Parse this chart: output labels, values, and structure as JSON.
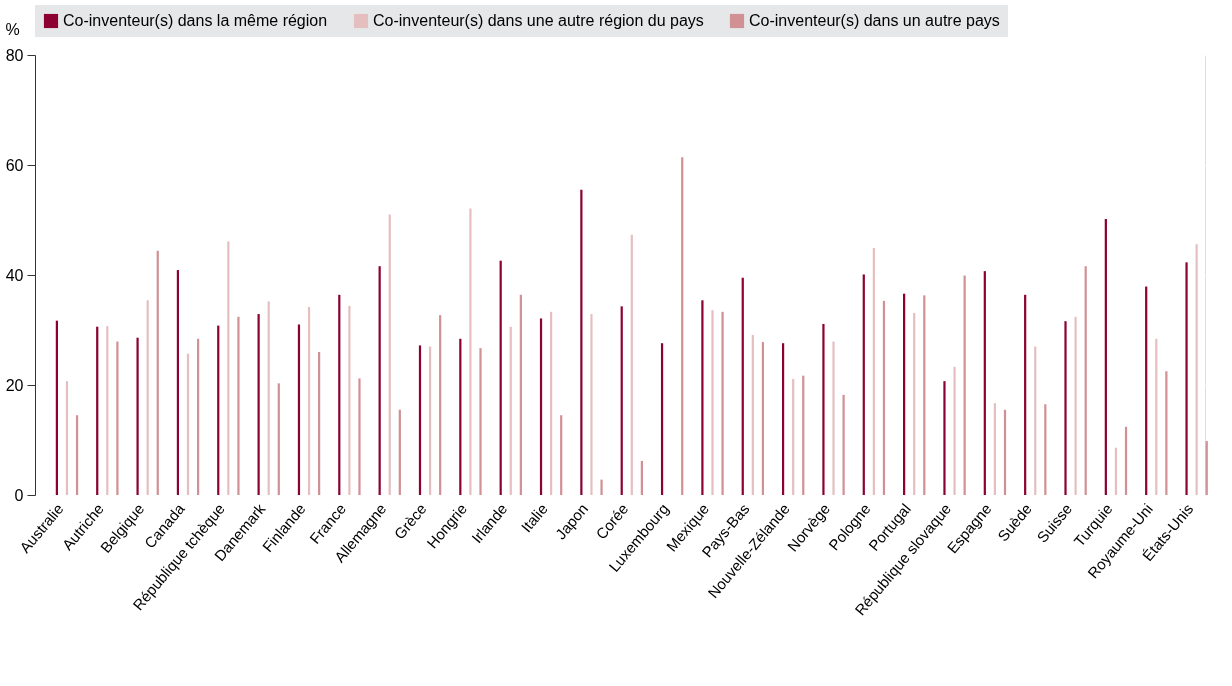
{
  "chart_data": {
    "type": "bar",
    "ylabel": "%",
    "categories": [
      "Australie",
      "Autriche",
      "Belgique",
      "Canada",
      "République tchèque",
      "Danemark",
      "Finlande",
      "France",
      "Allemagne",
      "Grèce",
      "Hongrie",
      "Irlande",
      "Italie",
      "Japon",
      "Corée",
      "Luxembourg",
      "Mexique",
      "Pays-Bas",
      "Nouvelle-Zélande",
      "Norvège",
      "Pologne",
      "Portugal",
      "République slovaque",
      "Espagne",
      "Suède",
      "Suisse",
      "Turquie",
      "Royaume-Uni",
      "États-Unis"
    ],
    "series": [
      {
        "name": "Co-inventeur(s) dans la même région",
        "color": "#8c0032",
        "values": [
          31.7,
          30.6,
          28.6,
          40.9,
          30.8,
          32.9,
          31.0,
          36.4,
          41.6,
          27.2,
          28.4,
          42.6,
          32.1,
          55.5,
          34.3,
          27.6,
          35.4,
          39.5,
          27.6,
          31.1,
          40.1,
          36.6,
          20.7,
          40.7,
          36.4,
          31.6,
          50.2,
          37.9,
          42.3
        ]
      },
      {
        "name": "Co-inventeur(s) dans une autre région du pays",
        "color": "#e5bfc0",
        "values": [
          20.7,
          30.7,
          35.4,
          25.7,
          46.1,
          35.2,
          34.2,
          34.4,
          51.0,
          27.0,
          52.1,
          30.6,
          33.3,
          32.9,
          47.3,
          null,
          33.6,
          29.1,
          21.1,
          27.9,
          44.9,
          33.1,
          23.3,
          16.7,
          27.0,
          32.4,
          8.6,
          28.4,
          45.6
        ]
      },
      {
        "name": "Co-inventeur(s) dans un autre pays",
        "color": "#d09094",
        "values": [
          14.5,
          27.9,
          44.4,
          28.4,
          32.4,
          20.3,
          26.0,
          21.2,
          15.5,
          32.7,
          26.7,
          36.4,
          14.5,
          2.8,
          6.2,
          61.4,
          33.3,
          27.8,
          21.7,
          18.2,
          35.3,
          36.3,
          39.9,
          15.5,
          16.5,
          41.6,
          12.4,
          22.5,
          9.8
        ]
      }
    ],
    "ylim": [
      0,
      80
    ],
    "yticks": [
      0,
      20,
      40,
      60,
      80
    ],
    "grid": true,
    "legend": "top"
  }
}
